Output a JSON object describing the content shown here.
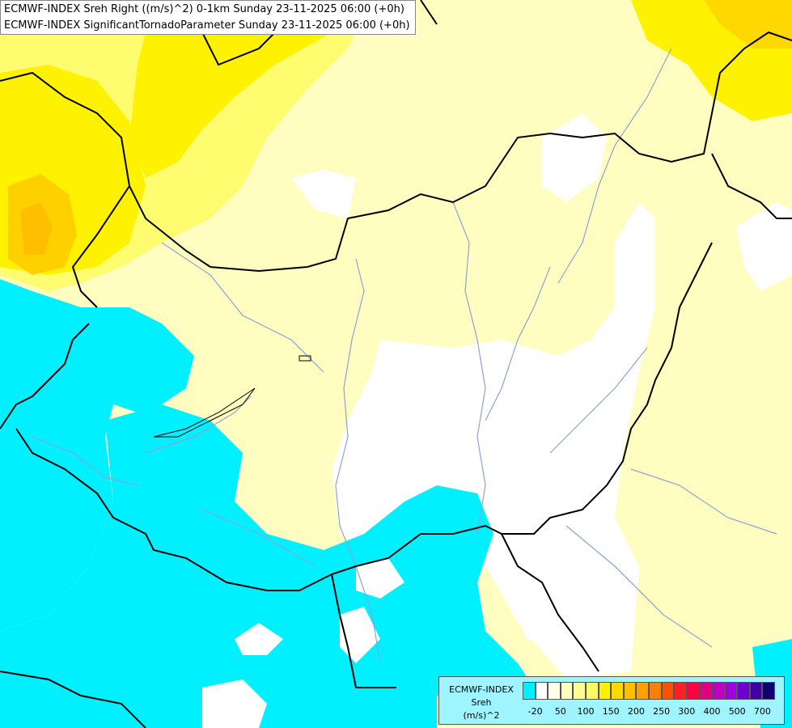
{
  "titles": [
    "ECMWF-INDEX Sreh Right ((m/s)^2) 0-1km Sunday 23-11-2025 06:00 (+0h)",
    "ECMWF-INDEX SignificantTornadoParameter Sunday 23-11-2025 06:00 (+0h)"
  ],
  "legend": {
    "model": "ECMWF-INDEX",
    "variable": "Sreh",
    "unit": "(m/s)^2",
    "colors": [
      "#00f0ff",
      "#ffffff",
      "#fffee8",
      "#fffec0",
      "#fffc90",
      "#fff860",
      "#fff000",
      "#ffd800",
      "#ffbf00",
      "#ffa000",
      "#ff8000",
      "#ff5000",
      "#ff2020",
      "#ff0040",
      "#e00080",
      "#c000c0",
      "#a000e0",
      "#7000d0",
      "#4000a0",
      "#100070"
    ],
    "tick_labels": [
      "-20",
      "50",
      "100",
      "150",
      "200",
      "250",
      "300",
      "400",
      "500",
      "700"
    ]
  },
  "colors": {
    "cyan": "#00f0ff",
    "white": "#ffffff",
    "pale_yellow": "#fffec0",
    "yellow": "#fff000",
    "dark_yellow": "#ffd800",
    "orange": "#ffbf00",
    "border": "#000000",
    "river": "#8aa4d6"
  }
}
